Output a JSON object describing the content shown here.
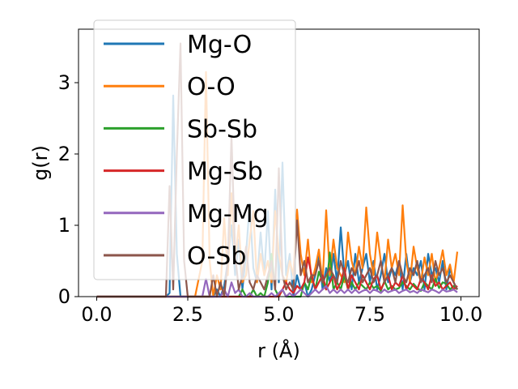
{
  "chart_data": {
    "type": "line",
    "title": "",
    "xlabel": "r (Å)",
    "ylabel": "g(r)",
    "xlim": [
      -0.5,
      10.5
    ],
    "ylim": [
      0,
      3.75
    ],
    "x_ticks": [
      0.0,
      2.5,
      5.0,
      7.5,
      10.0
    ],
    "x_tick_labels": [
      "0.0",
      "2.5",
      "5.0",
      "7.5",
      "10.0"
    ],
    "y_ticks": [
      0,
      1,
      2,
      3
    ],
    "y_tick_labels": [
      "0",
      "1",
      "2",
      "3"
    ],
    "grid": false,
    "legend_position": "upper-left",
    "x": [
      0.0,
      0.1,
      0.2,
      0.3,
      0.4,
      0.5,
      0.6,
      0.7,
      0.8,
      0.9,
      1.0,
      1.1,
      1.2,
      1.3,
      1.4,
      1.5,
      1.6,
      1.7,
      1.8,
      1.9,
      2.0,
      2.1,
      2.2,
      2.3,
      2.4,
      2.5,
      2.6,
      2.7,
      2.8,
      2.9,
      3.0,
      3.1,
      3.2,
      3.3,
      3.4,
      3.5,
      3.6,
      3.7,
      3.8,
      3.9,
      4.0,
      4.1,
      4.2,
      4.3,
      4.4,
      4.5,
      4.6,
      4.7,
      4.8,
      4.9,
      5.0,
      5.1,
      5.2,
      5.3,
      5.4,
      5.5,
      5.6,
      5.7,
      5.8,
      5.9,
      6.0,
      6.1,
      6.2,
      6.3,
      6.4,
      6.5,
      6.6,
      6.7,
      6.8,
      6.9,
      7.0,
      7.1,
      7.2,
      7.3,
      7.4,
      7.5,
      7.6,
      7.7,
      7.8,
      7.9,
      8.0,
      8.1,
      8.2,
      8.3,
      8.4,
      8.5,
      8.6,
      8.7,
      8.8,
      8.9,
      9.0,
      9.1,
      9.2,
      9.3,
      9.4,
      9.5,
      9.6,
      9.7,
      9.8,
      9.9
    ],
    "series": [
      {
        "name": "Mg-O",
        "color": "#1f77b4",
        "values": [
          0,
          0,
          0,
          0,
          0,
          0,
          0,
          0,
          0,
          0,
          0,
          0,
          0,
          0,
          0,
          0,
          0,
          0,
          0,
          0,
          0.05,
          2.82,
          0.6,
          0,
          0,
          0,
          0,
          0,
          0,
          0,
          0,
          0,
          0,
          0.1,
          0,
          0.15,
          0.5,
          1.0,
          0.3,
          0.8,
          0.1,
          0.6,
          1.3,
          0.4,
          0.2,
          0.9,
          0.3,
          1.2,
          0.1,
          1.5,
          0.2,
          1.88,
          0.3,
          0.6,
          0,
          0.3,
          0.1,
          0.2,
          0,
          0.1,
          0.3,
          0.6,
          0.1,
          0.4,
          0.2,
          0.6,
          0.2,
          0.97,
          0.3,
          0.5,
          0.1,
          0.6,
          0.2,
          0.4,
          0.6,
          0.2,
          0.5,
          0.1,
          0.3,
          0.6,
          0.2,
          0.4,
          0.3,
          0.5,
          0.1,
          0.6,
          0.2,
          0.4,
          0.3,
          0.5,
          0.1,
          0.6,
          0.3,
          0.4,
          0.2,
          0.5,
          0.1,
          0.4,
          0.2,
          0.1
        ]
      },
      {
        "name": "O-O",
        "color": "#ff7f0e",
        "values": [
          0,
          0,
          0,
          0,
          0,
          0,
          0,
          0,
          0,
          0,
          0,
          0,
          0,
          0,
          0,
          0,
          0,
          0,
          0,
          0,
          0,
          0,
          0,
          0,
          0,
          0,
          0,
          0,
          0.25,
          0.5,
          3.15,
          0.5,
          0,
          0.3,
          0.1,
          1.1,
          0.3,
          1.45,
          0.5,
          1.0,
          0.2,
          0.3,
          0.8,
          1.2,
          0.2,
          0.6,
          0.3,
          0.5,
          0.2,
          1.2,
          0.6,
          0.3,
          0.2,
          0.5,
          0.3,
          1.22,
          0.6,
          0.3,
          0.8,
          0.2,
          0.4,
          0.66,
          0.2,
          1.21,
          0.3,
          0.8,
          0.4,
          0.3,
          0.2,
          0.9,
          0.5,
          0.3,
          0.7,
          0.4,
          1.25,
          0.6,
          0.3,
          0.9,
          0.5,
          0.2,
          0.8,
          0.4,
          0.6,
          0.3,
          1.28,
          0.5,
          0.2,
          0.7,
          0.4,
          0.2,
          0.55,
          0.3,
          0.6,
          0.2,
          0.4,
          0.65,
          0.3,
          0.45,
          0.2,
          0.63
        ]
      },
      {
        "name": "Sb-Sb",
        "color": "#2ca02c",
        "values": [
          0,
          0,
          0,
          0,
          0,
          0,
          0,
          0,
          0,
          0,
          0,
          0,
          0,
          0,
          0,
          0,
          0,
          0,
          0,
          0,
          0,
          0,
          0,
          0,
          0,
          0,
          0,
          0,
          0,
          0,
          0,
          0,
          0,
          0,
          0,
          0,
          0,
          0,
          0,
          0,
          0.1,
          0,
          0,
          0.1,
          0,
          0.05,
          0,
          0.2,
          0.6,
          0.1,
          0,
          0.1,
          0,
          0,
          0,
          0,
          0,
          0.2,
          0.1,
          0.3,
          0.1,
          0.35,
          0.2,
          0.1,
          0.62,
          0.1,
          0.2,
          0.1,
          0.3,
          0.1,
          0.2,
          0.1,
          0.2,
          0.15,
          0.1,
          0.2,
          0.12,
          0.15,
          0.08,
          0.22,
          0.1,
          0.15,
          0.1,
          0.12,
          0.2,
          0.15,
          0.1,
          0.18,
          0.12,
          0.08,
          0.2,
          0.15,
          0.1,
          0.25,
          0.12,
          0.2,
          0.18,
          0.1,
          0.15,
          0.1
        ]
      },
      {
        "name": "Mg-Sb",
        "color": "#d62728",
        "values": [
          0,
          0,
          0,
          0,
          0,
          0,
          0,
          0,
          0,
          0,
          0,
          0,
          0,
          0,
          0,
          0,
          0,
          0,
          0,
          0,
          0,
          0,
          0,
          0,
          0,
          0,
          0,
          0,
          0,
          0,
          0,
          0,
          0,
          0,
          0,
          0,
          0,
          0,
          0,
          0,
          0,
          0,
          0,
          0,
          0,
          0,
          0,
          0,
          0,
          0,
          0,
          0.1,
          0.2,
          0.1,
          0.05,
          0.15,
          0.1,
          0.2,
          0.55,
          0.3,
          0.1,
          0.2,
          0.3,
          0.1,
          0.2,
          0.3,
          0.1,
          0.2,
          0.4,
          0.1,
          0.3,
          0.2,
          0.1,
          0.3,
          0.2,
          0.1,
          0.25,
          0.3,
          0.1,
          0.2,
          0.3,
          0.1,
          0.2,
          0.15,
          0.3,
          0.1,
          0.2,
          0.15,
          0.1,
          0.25,
          0.2,
          0.1,
          0.3,
          0.15,
          0.2,
          0.1,
          0.15,
          0.2,
          0.1,
          0.15
        ]
      },
      {
        "name": "Mg-Mg",
        "color": "#9467bd",
        "values": [
          0,
          0,
          0,
          0,
          0,
          0,
          0,
          0,
          0,
          0,
          0,
          0,
          0,
          0,
          0,
          0,
          0,
          0,
          0,
          0,
          0,
          0,
          0,
          0,
          0,
          0,
          0,
          0,
          0,
          0,
          0.25,
          0,
          0,
          0,
          0,
          0.1,
          0,
          0.2,
          0.05,
          0.1,
          0,
          0,
          0.05,
          0,
          0,
          0,
          0,
          0,
          0.05,
          0,
          0.05,
          0.1,
          0,
          0.05,
          0,
          0.05,
          0.1,
          0.05,
          0,
          0.05,
          0.1,
          0.05,
          0.1,
          0.15,
          0.05,
          0.1,
          0.05,
          0.1,
          0.05,
          0.1,
          0.05,
          0.1,
          0.05,
          0.08,
          0.1,
          0.05,
          0.1,
          0.08,
          0.05,
          0.1,
          0.06,
          0.08,
          0.1,
          0.05,
          0.08,
          0.1,
          0.06,
          0.08,
          0.05,
          0.1,
          0.08,
          0.06,
          0.1,
          0.08,
          0.05,
          0.1,
          0.07,
          0.08,
          0.1,
          0.06
        ]
      },
      {
        "name": "O-Sb",
        "color": "#8c564b",
        "values": [
          0,
          0,
          0,
          0,
          0,
          0,
          0,
          0,
          0,
          0,
          0,
          0,
          0,
          0,
          0,
          0,
          0,
          0,
          0,
          0,
          1.55,
          0.1,
          2.0,
          3.55,
          0.5,
          0,
          0,
          0,
          0,
          0,
          0,
          0,
          0.3,
          0,
          0.2,
          0,
          0.5,
          2.25,
          0.6,
          0.1,
          0.3,
          0.7,
          0.2,
          0.1,
          0.3,
          0.2,
          0.1,
          0.3,
          0.5,
          0.1,
          1.8,
          0.3,
          0.1,
          0.2,
          0.1,
          1.07,
          0.3,
          0.5,
          0.2,
          0.3,
          0.3,
          0.5,
          0.2,
          0.3,
          0.4,
          0.3,
          0.2,
          0.5,
          0.3,
          0.2,
          0.4,
          0.3,
          0.5,
          0.2,
          0.3,
          0.4,
          0.2,
          0.3,
          0.5,
          0.2,
          0.3,
          0.4,
          0.2,
          0.5,
          0.3,
          0.2,
          0.4,
          0.3,
          0.5,
          0.2,
          0.3,
          0.4,
          0.2,
          0.5,
          0.3,
          0.4,
          0.2,
          0.3,
          0.2,
          0.1
        ]
      }
    ]
  }
}
